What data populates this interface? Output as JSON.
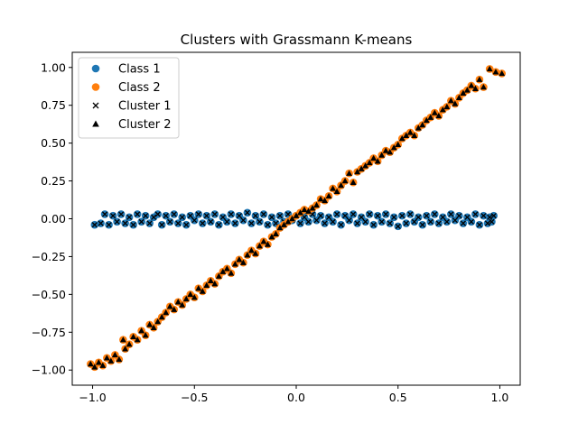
{
  "chart_data": {
    "type": "scatter",
    "title": "Clusters with Grassmann K-means",
    "xlabel": "",
    "ylabel": "",
    "xlim": [
      -1.1,
      1.1
    ],
    "ylim": [
      -1.1,
      1.1
    ],
    "xticks": [
      -1.0,
      -0.5,
      0.0,
      0.5,
      1.0
    ],
    "xtick_labels": [
      "−1.0",
      "−0.5",
      "0.0",
      "0.5",
      "1.0"
    ],
    "yticks": [
      -1.0,
      -0.75,
      -0.5,
      -0.25,
      0.0,
      0.25,
      0.5,
      0.75,
      1.0
    ],
    "ytick_labels": [
      "−1.00",
      "−0.75",
      "−0.50",
      "−0.25",
      "0.00",
      "0.25",
      "0.50",
      "0.75",
      "1.00"
    ],
    "grid": false,
    "legend_position": "top-left",
    "legend": [
      {
        "label": "Class 1",
        "marker": "circle",
        "color": "#1f77b4"
      },
      {
        "label": "Class 2",
        "marker": "circle",
        "color": "#ff7f0e"
      },
      {
        "label": "Cluster 1",
        "marker": "x",
        "color": "#000000"
      },
      {
        "label": "Cluster 2",
        "marker": "triangle",
        "color": "#000000"
      }
    ],
    "series": [
      {
        "name": "Class 1",
        "color": "#1f77b4",
        "marker": "circle",
        "cluster_marker": "x",
        "points": [
          [
            -0.99,
            -0.04
          ],
          [
            -0.96,
            -0.03
          ],
          [
            -0.94,
            0.03
          ],
          [
            -0.92,
            -0.04
          ],
          [
            -0.9,
            0.02
          ],
          [
            -0.88,
            -0.02
          ],
          [
            -0.86,
            0.03
          ],
          [
            -0.84,
            -0.03
          ],
          [
            -0.82,
            0.01
          ],
          [
            -0.8,
            -0.04
          ],
          [
            -0.78,
            0.03
          ],
          [
            -0.76,
            -0.02
          ],
          [
            -0.74,
            0.02
          ],
          [
            -0.72,
            -0.03
          ],
          [
            -0.7,
            0.01
          ],
          [
            -0.68,
            0.03
          ],
          [
            -0.66,
            -0.04
          ],
          [
            -0.64,
            0.02
          ],
          [
            -0.62,
            -0.02
          ],
          [
            -0.6,
            0.03
          ],
          [
            -0.58,
            -0.03
          ],
          [
            -0.56,
            0.01
          ],
          [
            -0.54,
            -0.04
          ],
          [
            -0.52,
            0.02
          ],
          [
            -0.5,
            -0.01
          ],
          [
            -0.48,
            0.03
          ],
          [
            -0.46,
            -0.03
          ],
          [
            -0.44,
            0.02
          ],
          [
            -0.42,
            -0.02
          ],
          [
            -0.4,
            0.03
          ],
          [
            -0.38,
            -0.04
          ],
          [
            -0.36,
            0.01
          ],
          [
            -0.34,
            -0.02
          ],
          [
            -0.32,
            0.03
          ],
          [
            -0.3,
            -0.03
          ],
          [
            -0.28,
            0.02
          ],
          [
            -0.26,
            -0.01
          ],
          [
            -0.24,
            0.04
          ],
          [
            -0.22,
            -0.03
          ],
          [
            -0.2,
            0.02
          ],
          [
            -0.18,
            -0.02
          ],
          [
            -0.16,
            0.03
          ],
          [
            -0.14,
            -0.04
          ],
          [
            -0.12,
            0.01
          ],
          [
            -0.1,
            -0.03
          ],
          [
            -0.08,
            0.02
          ],
          [
            -0.06,
            -0.02
          ],
          [
            -0.04,
            0.03
          ],
          [
            -0.02,
            -0.01
          ],
          [
            0.0,
            0.02
          ],
          [
            0.02,
            -0.03
          ],
          [
            0.04,
            0.01
          ],
          [
            0.06,
            -0.02
          ],
          [
            0.08,
            0.03
          ],
          [
            0.1,
            -0.01
          ],
          [
            0.12,
            0.02
          ],
          [
            0.14,
            -0.03
          ],
          [
            0.16,
            0.01
          ],
          [
            0.18,
            -0.02
          ],
          [
            0.2,
            0.03
          ],
          [
            0.22,
            -0.04
          ],
          [
            0.24,
            0.02
          ],
          [
            0.26,
            -0.01
          ],
          [
            0.28,
            0.03
          ],
          [
            0.3,
            -0.03
          ],
          [
            0.32,
            0.01
          ],
          [
            0.34,
            -0.02
          ],
          [
            0.36,
            0.03
          ],
          [
            0.38,
            -0.04
          ],
          [
            0.4,
            0.02
          ],
          [
            0.42,
            -0.02
          ],
          [
            0.44,
            0.03
          ],
          [
            0.46,
            -0.03
          ],
          [
            0.48,
            0.01
          ],
          [
            0.5,
            -0.05
          ],
          [
            0.52,
            0.02
          ],
          [
            0.54,
            -0.03
          ],
          [
            0.56,
            0.03
          ],
          [
            0.58,
            -0.02
          ],
          [
            0.6,
            0.01
          ],
          [
            0.62,
            -0.04
          ],
          [
            0.64,
            0.02
          ],
          [
            0.66,
            -0.02
          ],
          [
            0.68,
            0.03
          ],
          [
            0.7,
            -0.03
          ],
          [
            0.72,
            0.01
          ],
          [
            0.74,
            -0.02
          ],
          [
            0.76,
            0.03
          ],
          [
            0.78,
            -0.01
          ],
          [
            0.8,
            0.02
          ],
          [
            0.82,
            -0.03
          ],
          [
            0.84,
            0.01
          ],
          [
            0.86,
            -0.02
          ],
          [
            0.88,
            0.03
          ],
          [
            0.9,
            -0.04
          ],
          [
            0.92,
            0.02
          ],
          [
            0.94,
            -0.03
          ],
          [
            0.95,
            0.01
          ],
          [
            0.96,
            -0.02
          ],
          [
            0.97,
            0.02
          ]
        ]
      },
      {
        "name": "Class 2",
        "color": "#ff7f0e",
        "marker": "circle",
        "cluster_marker": "triangle",
        "points": [
          [
            -1.01,
            -0.96
          ],
          [
            -0.99,
            -0.98
          ],
          [
            -0.97,
            -0.95
          ],
          [
            -0.95,
            -0.97
          ],
          [
            -0.93,
            -0.92
          ],
          [
            -0.91,
            -0.94
          ],
          [
            -0.89,
            -0.9
          ],
          [
            -0.87,
            -0.93
          ],
          [
            -0.85,
            -0.8
          ],
          [
            -0.84,
            -0.86
          ],
          [
            -0.82,
            -0.83
          ],
          [
            -0.8,
            -0.78
          ],
          [
            -0.78,
            -0.8
          ],
          [
            -0.76,
            -0.74
          ],
          [
            -0.74,
            -0.77
          ],
          [
            -0.72,
            -0.7
          ],
          [
            -0.7,
            -0.72
          ],
          [
            -0.68,
            -0.68
          ],
          [
            -0.66,
            -0.65
          ],
          [
            -0.64,
            -0.62
          ],
          [
            -0.62,
            -0.58
          ],
          [
            -0.6,
            -0.6
          ],
          [
            -0.58,
            -0.55
          ],
          [
            -0.56,
            -0.57
          ],
          [
            -0.54,
            -0.53
          ],
          [
            -0.52,
            -0.5
          ],
          [
            -0.5,
            -0.52
          ],
          [
            -0.48,
            -0.46
          ],
          [
            -0.46,
            -0.48
          ],
          [
            -0.44,
            -0.44
          ],
          [
            -0.42,
            -0.41
          ],
          [
            -0.4,
            -0.43
          ],
          [
            -0.38,
            -0.38
          ],
          [
            -0.36,
            -0.35
          ],
          [
            -0.34,
            -0.33
          ],
          [
            -0.32,
            -0.36
          ],
          [
            -0.3,
            -0.3
          ],
          [
            -0.28,
            -0.27
          ],
          [
            -0.26,
            -0.29
          ],
          [
            -0.24,
            -0.24
          ],
          [
            -0.22,
            -0.21
          ],
          [
            -0.2,
            -0.23
          ],
          [
            -0.18,
            -0.18
          ],
          [
            -0.16,
            -0.15
          ],
          [
            -0.14,
            -0.17
          ],
          [
            -0.12,
            -0.12
          ],
          [
            -0.1,
            -0.1
          ],
          [
            -0.08,
            -0.06
          ],
          [
            -0.06,
            -0.04
          ],
          [
            -0.04,
            -0.02
          ],
          [
            -0.02,
            0.0
          ],
          [
            0.0,
            0.02
          ],
          [
            0.02,
            0.04
          ],
          [
            0.04,
            0.06
          ],
          [
            0.06,
            0.05
          ],
          [
            0.08,
            0.07
          ],
          [
            0.1,
            0.09
          ],
          [
            0.12,
            0.13
          ],
          [
            0.14,
            0.12
          ],
          [
            0.16,
            0.15
          ],
          [
            0.18,
            0.2
          ],
          [
            0.2,
            0.18
          ],
          [
            0.22,
            0.22
          ],
          [
            0.24,
            0.25
          ],
          [
            0.26,
            0.3
          ],
          [
            0.28,
            0.24
          ],
          [
            0.3,
            0.31
          ],
          [
            0.32,
            0.33
          ],
          [
            0.34,
            0.35
          ],
          [
            0.36,
            0.37
          ],
          [
            0.38,
            0.4
          ],
          [
            0.4,
            0.38
          ],
          [
            0.42,
            0.42
          ],
          [
            0.44,
            0.45
          ],
          [
            0.46,
            0.44
          ],
          [
            0.48,
            0.47
          ],
          [
            0.5,
            0.49
          ],
          [
            0.52,
            0.53
          ],
          [
            0.54,
            0.55
          ],
          [
            0.56,
            0.57
          ],
          [
            0.58,
            0.55
          ],
          [
            0.6,
            0.6
          ],
          [
            0.62,
            0.62
          ],
          [
            0.64,
            0.65
          ],
          [
            0.66,
            0.67
          ],
          [
            0.68,
            0.7
          ],
          [
            0.7,
            0.68
          ],
          [
            0.72,
            0.72
          ],
          [
            0.74,
            0.74
          ],
          [
            0.76,
            0.78
          ],
          [
            0.78,
            0.76
          ],
          [
            0.8,
            0.8
          ],
          [
            0.82,
            0.83
          ],
          [
            0.84,
            0.85
          ],
          [
            0.86,
            0.88
          ],
          [
            0.88,
            0.86
          ],
          [
            0.9,
            0.92
          ],
          [
            0.92,
            0.87
          ],
          [
            0.95,
            0.99
          ],
          [
            0.98,
            0.97
          ],
          [
            1.01,
            0.96
          ]
        ]
      }
    ]
  }
}
